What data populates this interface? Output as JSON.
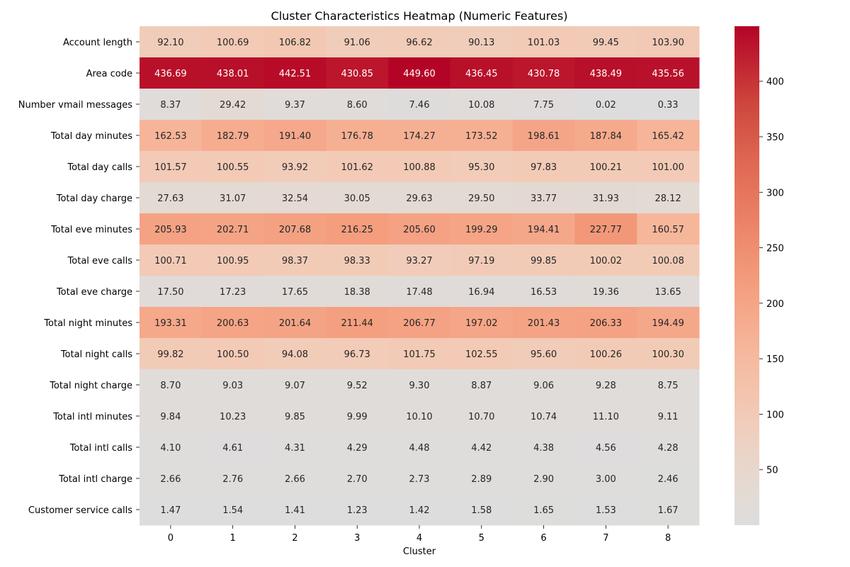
{
  "chart_data": {
    "type": "heatmap",
    "title": "Cluster Characteristics Heatmap (Numeric Features)",
    "xlabel": "Cluster",
    "ylabel": "",
    "x_categories": [
      "0",
      "1",
      "2",
      "3",
      "4",
      "5",
      "6",
      "7",
      "8"
    ],
    "y_categories": [
      "Account length",
      "Area code",
      "Number vmail messages",
      "Total day minutes",
      "Total day calls",
      "Total day charge",
      "Total eve minutes",
      "Total eve calls",
      "Total eve charge",
      "Total night minutes",
      "Total night calls",
      "Total night charge",
      "Total intl minutes",
      "Total intl calls",
      "Total intl charge",
      "Customer service calls"
    ],
    "values": [
      [
        92.1,
        100.69,
        106.82,
        91.06,
        96.62,
        90.13,
        101.03,
        99.45,
        103.9
      ],
      [
        436.69,
        438.01,
        442.51,
        430.85,
        449.6,
        436.45,
        430.78,
        438.49,
        435.56
      ],
      [
        8.37,
        29.42,
        9.37,
        8.6,
        7.46,
        10.08,
        7.75,
        0.02,
        0.33
      ],
      [
        162.53,
        182.79,
        191.4,
        176.78,
        174.27,
        173.52,
        198.61,
        187.84,
        165.42
      ],
      [
        101.57,
        100.55,
        93.92,
        101.62,
        100.88,
        95.3,
        97.83,
        100.21,
        101.0
      ],
      [
        27.63,
        31.07,
        32.54,
        30.05,
        29.63,
        29.5,
        33.77,
        31.93,
        28.12
      ],
      [
        205.93,
        202.71,
        207.68,
        216.25,
        205.6,
        199.29,
        194.41,
        227.77,
        160.57
      ],
      [
        100.71,
        100.95,
        98.37,
        98.33,
        93.27,
        97.19,
        99.85,
        100.02,
        100.08
      ],
      [
        17.5,
        17.23,
        17.65,
        18.38,
        17.48,
        16.94,
        16.53,
        19.36,
        13.65
      ],
      [
        193.31,
        200.63,
        201.64,
        211.44,
        206.77,
        197.02,
        201.43,
        206.33,
        194.49
      ],
      [
        99.82,
        100.5,
        94.08,
        96.73,
        101.75,
        102.55,
        95.6,
        100.26,
        100.3
      ],
      [
        8.7,
        9.03,
        9.07,
        9.52,
        9.3,
        8.87,
        9.06,
        9.28,
        8.75
      ],
      [
        9.84,
        10.23,
        9.85,
        9.99,
        10.1,
        10.7,
        10.74,
        11.1,
        9.11
      ],
      [
        4.1,
        4.61,
        4.31,
        4.29,
        4.48,
        4.42,
        4.38,
        4.56,
        4.28
      ],
      [
        2.66,
        2.76,
        2.66,
        2.7,
        2.73,
        2.89,
        2.9,
        3.0,
        2.46
      ],
      [
        1.47,
        1.54,
        1.41,
        1.23,
        1.42,
        1.58,
        1.65,
        1.53,
        1.67
      ]
    ],
    "value_format": "0.00",
    "colormap": "coolwarm",
    "colorbar_range": [
      0.02,
      449.6
    ],
    "colorbar_ticks": [
      50,
      100,
      150,
      200,
      250,
      300,
      350,
      400
    ],
    "colors": {
      "low": "#dddddd",
      "high": "#b40426",
      "text_dark": "#262626",
      "text_light": "#ffffff"
    },
    "grid": false,
    "legend": "colorbar-right"
  }
}
